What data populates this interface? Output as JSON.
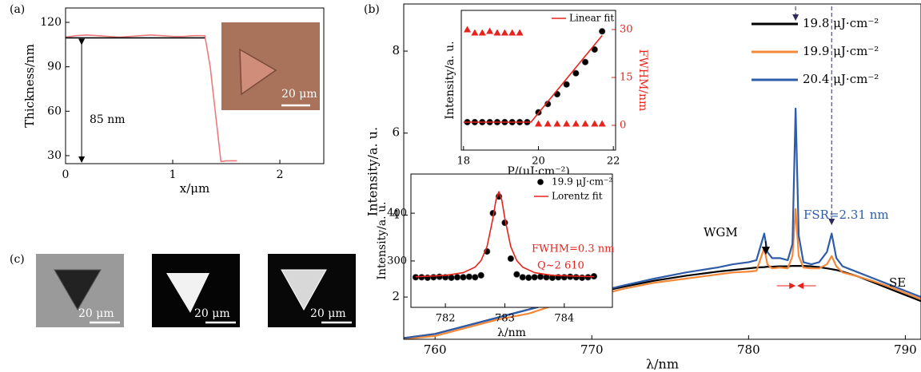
{
  "chart_data": [
    {
      "type": "line",
      "label": "(a)",
      "xlabel": "x/μm",
      "ylabel": "Thickness/nm",
      "xlim": [
        0,
        2.41
      ],
      "xticks": [
        0,
        1,
        2
      ],
      "ylim": [
        24.6,
        129.7
      ],
      "yticks": [
        30,
        60,
        90,
        120
      ],
      "x": [
        0,
        0.1,
        0.2,
        0.3,
        0.4,
        0.5,
        0.6,
        0.7,
        0.8,
        0.9,
        1.0,
        1.1,
        1.2,
        1.3,
        1.35,
        1.45,
        1.5,
        1.6
      ],
      "series": [
        {
          "color": "#ee7b7b",
          "values": [
            110,
            111,
            111.5,
            111,
            110.5,
            110,
            110.5,
            111,
            111.5,
            111,
            110.5,
            110.5,
            111,
            111,
            90,
            26,
            26.5,
            26.5
          ]
        },
        {
          "color": "#000000",
          "values": [
            109.5,
            109.5,
            109.5,
            109.5,
            109.5,
            109.5,
            109.5,
            109.5,
            109.5,
            109.5,
            109.5,
            109.5,
            109.5,
            109.5,
            null,
            null,
            null,
            null
          ]
        }
      ],
      "annotations": [
        {
          "text": "85 nm",
          "color": "#000000"
        }
      ],
      "scale_label": "20 μm"
    },
    {
      "type": "line",
      "label": "(b)",
      "xlabel": "λ/nm",
      "ylabel": "Intensity/a. u.",
      "xlim": [
        758,
        791
      ],
      "xticks": [
        760,
        770,
        780,
        790
      ],
      "ylim": [
        0.97,
        9.15
      ],
      "yticks": [
        2,
        4,
        6,
        8
      ],
      "legend": "upper right",
      "x": [
        758,
        760,
        762,
        764,
        766,
        768,
        770,
        772,
        774,
        776,
        778,
        779,
        780,
        780.5,
        781,
        781.2,
        781.5,
        782,
        782.5,
        782.8,
        783,
        783.2,
        783.5,
        784,
        784.5,
        785,
        785.3,
        785.6,
        786,
        787,
        788,
        789,
        790,
        791
      ],
      "series": [
        {
          "name": "19.8 μJ·cm⁻²",
          "color": "#000000",
          "values": [
            1.0,
            1.1,
            1.3,
            1.5,
            1.7,
            1.9,
            2.08,
            2.25,
            2.4,
            2.52,
            2.62,
            2.66,
            2.7,
            2.72,
            2.73,
            2.74,
            2.74,
            2.75,
            2.75,
            2.76,
            2.76,
            2.76,
            2.76,
            2.75,
            2.73,
            2.7,
            2.68,
            2.66,
            2.62,
            2.5,
            2.35,
            2.2,
            2.05,
            1.9
          ]
        },
        {
          "name": "19.9 μJ·cm⁻²",
          "color": "#f4883a",
          "values": [
            0.98,
            1.05,
            1.25,
            1.45,
            1.6,
            1.85,
            2.0,
            2.2,
            2.35,
            2.45,
            2.55,
            2.6,
            2.62,
            2.64,
            3.2,
            2.8,
            2.7,
            2.72,
            2.7,
            3.0,
            4.15,
            3.0,
            2.72,
            2.7,
            2.7,
            2.8,
            3.0,
            2.75,
            2.6,
            2.5,
            2.38,
            2.25,
            2.1,
            1.95
          ]
        },
        {
          "name": "20.4 μJ·cm⁻²",
          "color": "#2f5ca8",
          "values": [
            1.0,
            1.1,
            1.3,
            1.5,
            1.7,
            1.9,
            2.1,
            2.28,
            2.45,
            2.6,
            2.72,
            2.8,
            2.85,
            2.9,
            3.55,
            3.1,
            2.95,
            2.95,
            2.9,
            3.3,
            6.6,
            3.5,
            2.85,
            2.8,
            2.85,
            3.1,
            3.55,
            2.95,
            2.75,
            2.6,
            2.45,
            2.3,
            2.15,
            2.0
          ]
        }
      ],
      "annotations": [
        {
          "text": "WGM",
          "color": "#000000"
        },
        {
          "text": "FSR=2.31 nm",
          "color": "#2f5ca8"
        },
        {
          "text": "SE",
          "color": "#000000"
        }
      ]
    },
    {
      "type": "scatter",
      "xlabel": "P/(μJ·cm⁻²)",
      "ylabel": "Intensity/a. u.",
      "y2label": "FWHM/nm",
      "y2color": "#e8231c",
      "xlim": [
        17.94,
        22.06
      ],
      "xticks": [
        18,
        20,
        22
      ],
      "ylim": [
        0,
        1
      ],
      "y2lim": [
        -7.75,
        36
      ],
      "y2ticks": [
        0,
        15,
        30
      ],
      "legend": "upper right",
      "series": [
        {
          "color": "#000000",
          "marker": "circle",
          "x": [
            18.1,
            18.3,
            18.5,
            18.7,
            18.9,
            19.1,
            19.3,
            19.5,
            19.7,
            20.0,
            20.25,
            20.5,
            20.75,
            21.0,
            21.25,
            21.5,
            21.7
          ],
          "values": [
            0.2,
            0.2,
            0.2,
            0.2,
            0.2,
            0.2,
            0.2,
            0.2,
            0.2,
            0.27,
            0.33,
            0.4,
            0.47,
            0.55,
            0.63,
            0.72,
            0.85
          ]
        },
        {
          "color": "#e8231c",
          "marker": "triangle",
          "axis": "y2",
          "x": [
            18.1,
            18.3,
            18.5,
            18.7,
            18.9,
            19.1,
            19.3,
            19.5,
            20.0,
            20.25,
            20.5,
            20.75,
            21.0,
            21.25,
            21.5,
            21.7
          ],
          "values": [
            30,
            29,
            29,
            29.5,
            29,
            29,
            29,
            29,
            0.5,
            0.5,
            0.5,
            0.5,
            0.5,
            0.5,
            0.5,
            0.5
          ]
        },
        {
          "name": "Linear fit",
          "color": "#e8231c",
          "x": [
            18,
            19.8,
            21.7
          ],
          "values": [
            0.2,
            0.2,
            0.82
          ]
        }
      ]
    },
    {
      "type": "scatter",
      "xlabel": "λ/nm",
      "ylabel": "Intensity/a. u.",
      "xlim": [
        781.42,
        784.81
      ],
      "xticks": [
        782,
        783,
        784
      ],
      "ylim": [
        203,
        482
      ],
      "yticks": [
        300,
        400
      ],
      "legend": "upper right",
      "series": [
        {
          "name": "19.9 μJ·cm⁻²",
          "color": "#000000",
          "marker": "circle",
          "x": [
            781.5,
            781.6,
            781.7,
            781.8,
            781.9,
            782.0,
            782.1,
            782.2,
            782.3,
            782.4,
            782.5,
            782.6,
            782.7,
            782.8,
            782.9,
            783.0,
            783.1,
            783.2,
            783.3,
            783.4,
            783.5,
            783.6,
            783.7,
            783.8,
            783.9,
            784.0,
            784.1,
            784.2,
            784.3,
            784.4,
            784.5
          ],
          "values": [
            266,
            266,
            265,
            266,
            267,
            266,
            265,
            266,
            266,
            267,
            266,
            270,
            320,
            400,
            435,
            380,
            305,
            272,
            266,
            265,
            266,
            267,
            266,
            265,
            266,
            266,
            267,
            266,
            265,
            266,
            268
          ]
        },
        {
          "name": "Lorentz fit",
          "color": "#e8231c",
          "x": [
            781.5,
            782.0,
            782.3,
            782.5,
            782.6,
            782.7,
            782.8,
            782.85,
            782.9,
            782.95,
            783.0,
            783.1,
            783.2,
            783.3,
            783.5,
            783.8,
            784.5
          ],
          "values": [
            267.0,
            269.9,
            275.6,
            287.2,
            301,
            329.8,
            389.6,
            427,
            445,
            427,
            389.6,
            329.8,
            301,
            287.2,
            275.6,
            269.9,
            267.0
          ]
        }
      ],
      "annotations": [
        {
          "text": "FWHM=0.3 nm",
          "color": "#e8231c"
        },
        {
          "text": "Q~2 610",
          "color": "#e8231c"
        }
      ]
    }
  ],
  "panel_c": {
    "label": "(c)",
    "scale_labels": [
      "20 μm",
      "20 μm",
      "20 μm"
    ]
  }
}
